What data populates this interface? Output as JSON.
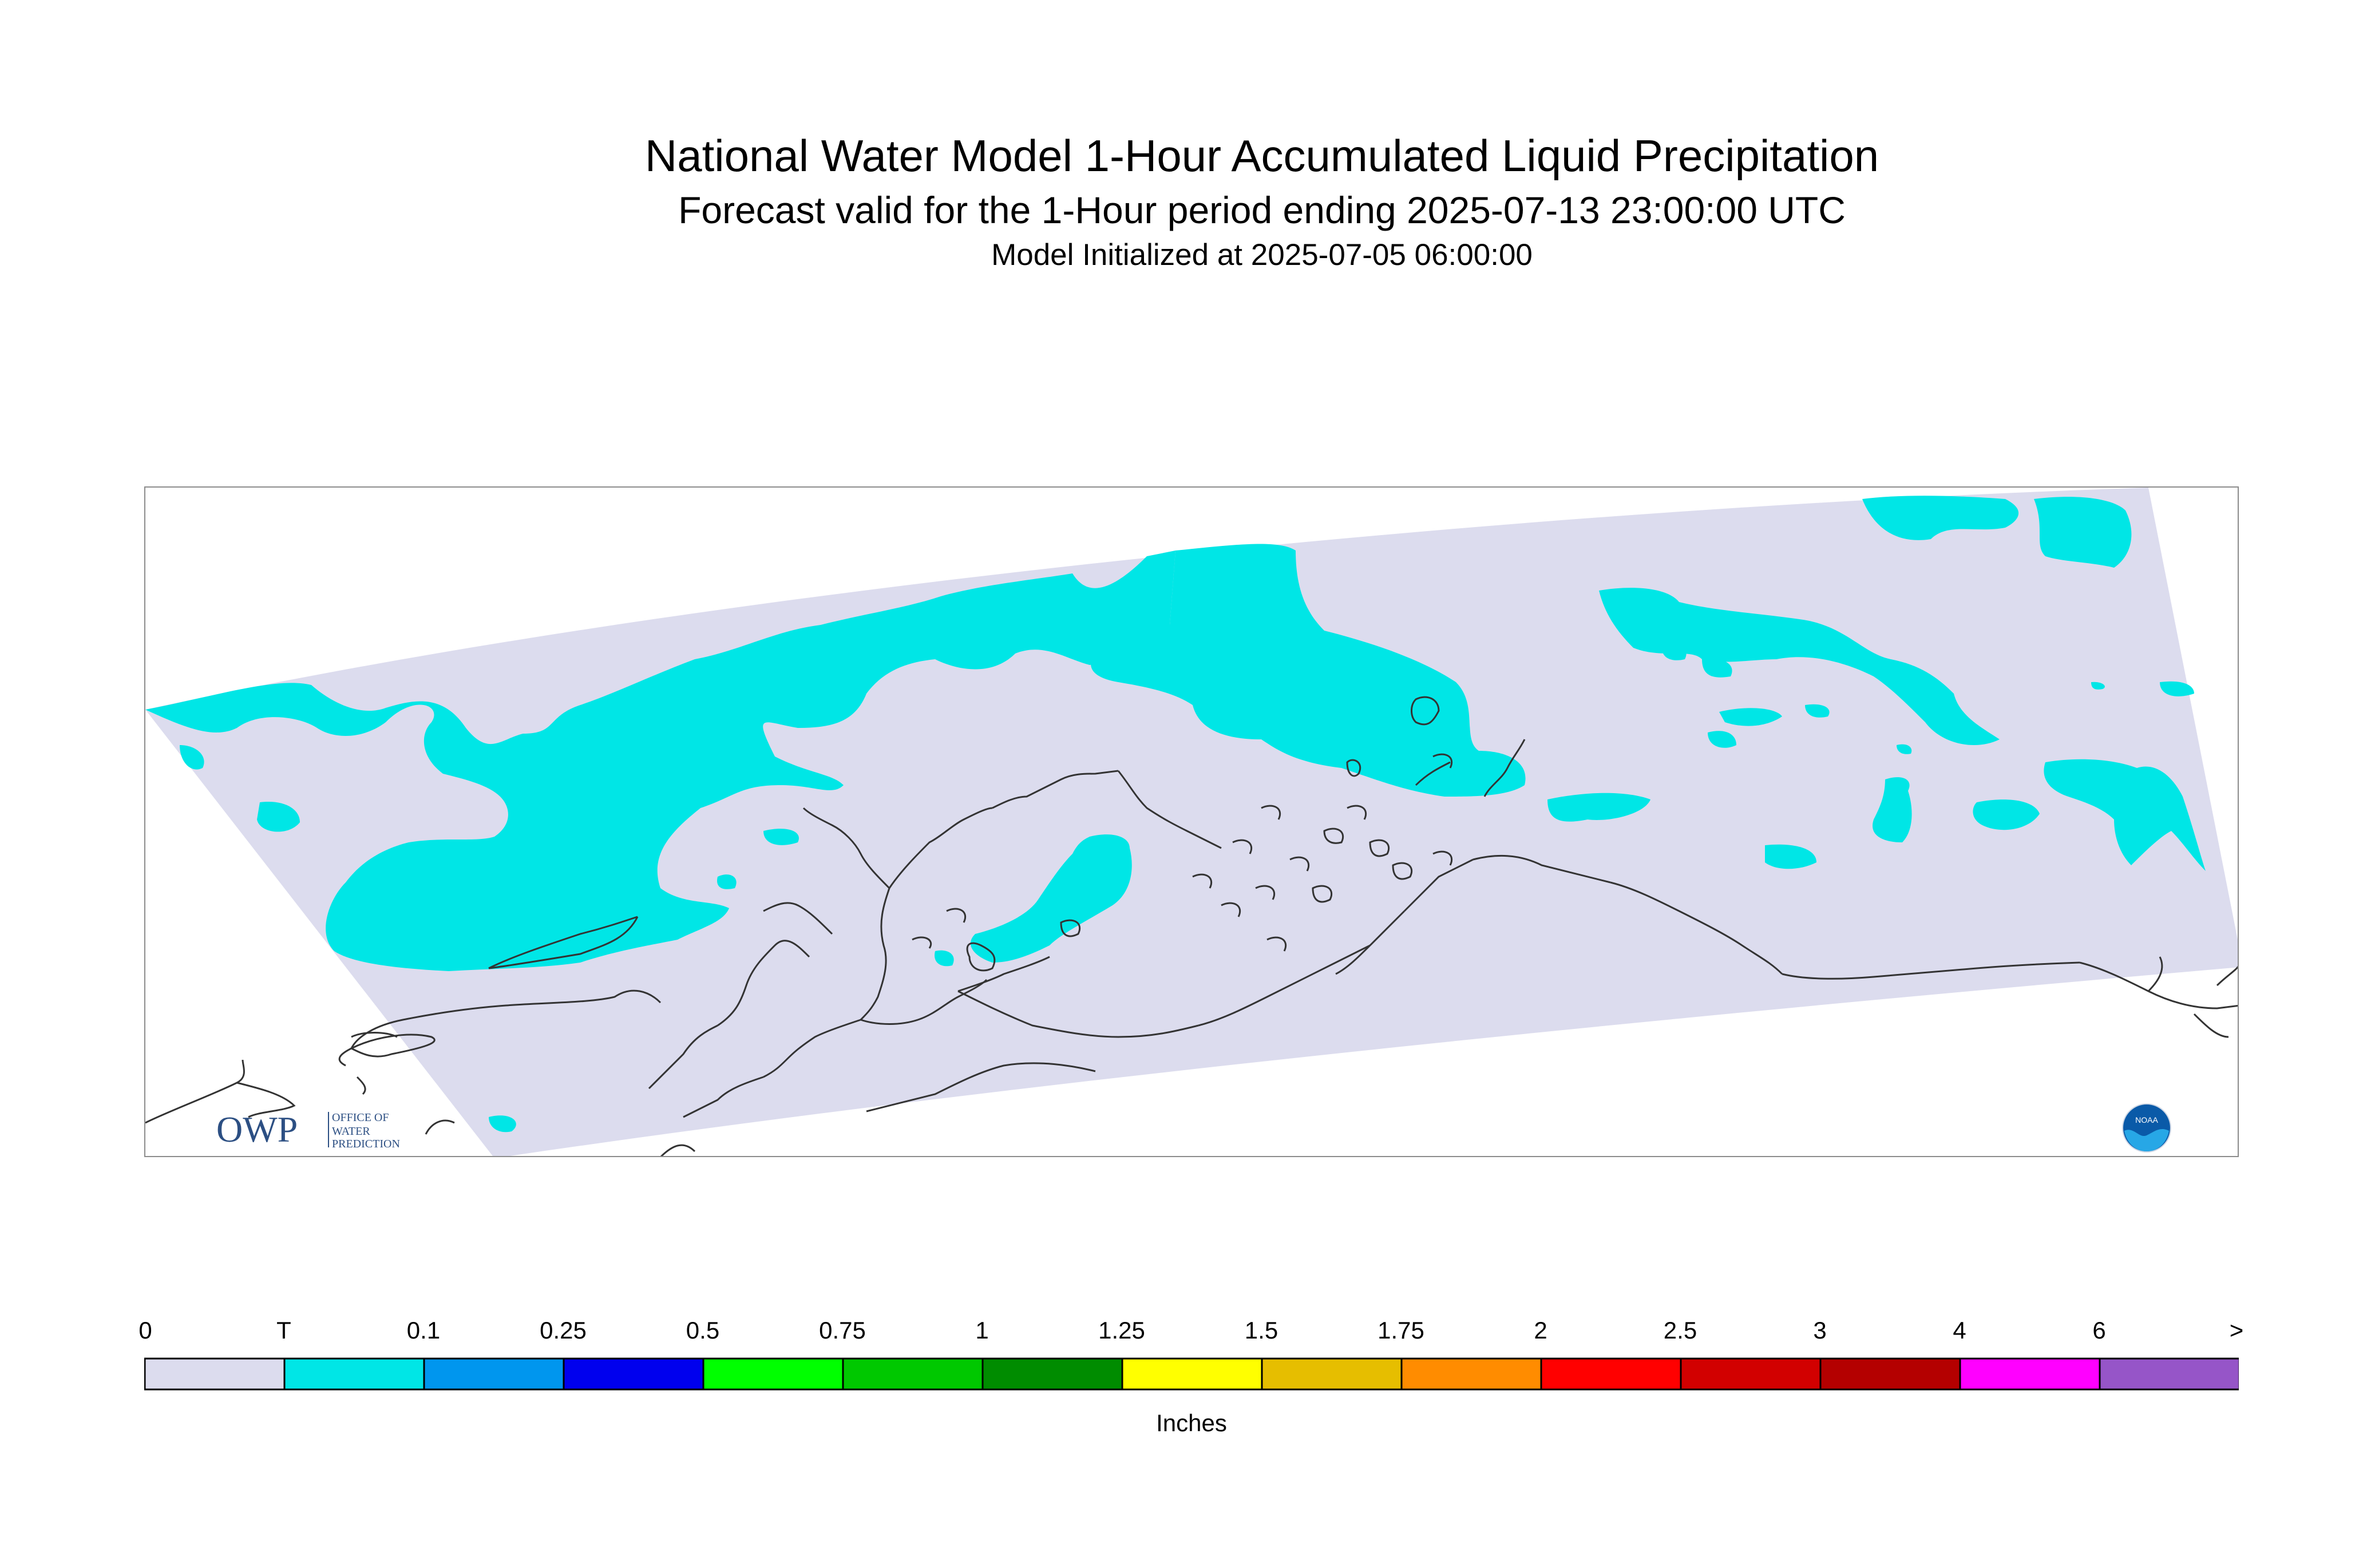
{
  "title": "National Water Model 1-Hour Accumulated Liquid Precipitation",
  "subtitle": "Forecast valid for the 1-Hour period ending 2025-07-13 23:00:00 UTC",
  "init": "Model Initialized at 2025-07-05 06:00:00",
  "logos": {
    "owp_mark": "OWP",
    "owp_text": [
      "OFFICE OF",
      "WATER",
      "PREDICTION"
    ],
    "noaa_mark": "NOAA"
  },
  "legend": {
    "labels": [
      "0",
      "T",
      "0.1",
      "0.25",
      "0.5",
      "0.75",
      "1",
      "1.25",
      "1.5",
      "1.75",
      "2",
      "2.5",
      "3",
      "4",
      "6",
      ">"
    ],
    "colors": [
      "#dcdcee",
      "#00e6e6",
      "#0096ee",
      "#0000ee",
      "#00ff00",
      "#00c800",
      "#008c00",
      "#ffff00",
      "#e6be00",
      "#ff8c00",
      "#ff0000",
      "#d20000",
      "#b40000",
      "#ff00ff",
      "#9655c8"
    ],
    "units": "Inches"
  },
  "colors": {
    "domain_fill": "#dcdcee",
    "trace_fill": "#00e6e6",
    "coastline": "#333333",
    "frame": "#8c8c8c"
  }
}
